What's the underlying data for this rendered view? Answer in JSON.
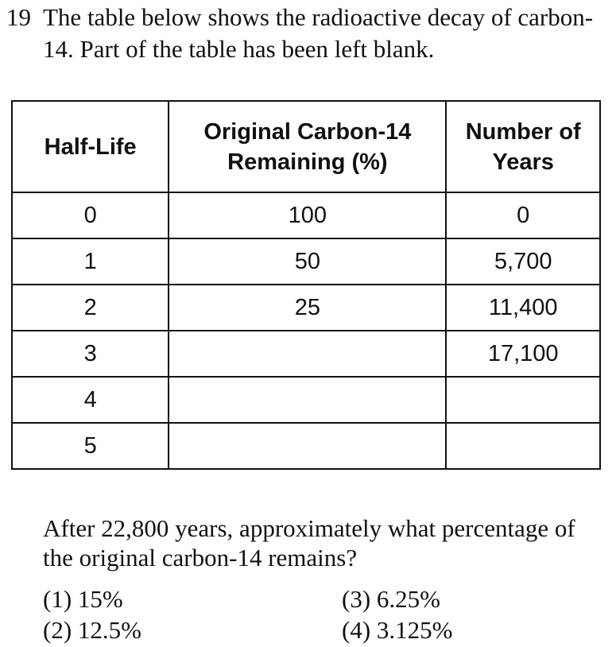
{
  "question": {
    "number": "19",
    "intro": "The table below shows the radioactive decay of carbon-14. Part of the table has been left blank."
  },
  "table": {
    "headers": {
      "half_life": "Half-Life",
      "remaining_line1": "Original Carbon-14",
      "remaining_line2": "Remaining (%)",
      "years_line1": "Number of",
      "years_line2": "Years"
    },
    "rows": [
      {
        "half_life": "0",
        "remaining": "100",
        "years": "0"
      },
      {
        "half_life": "1",
        "remaining": "50",
        "years": "5,700"
      },
      {
        "half_life": "2",
        "remaining": "25",
        "years": "11,400"
      },
      {
        "half_life": "3",
        "remaining": "",
        "years": "17,100"
      },
      {
        "half_life": "4",
        "remaining": "",
        "years": ""
      },
      {
        "half_life": "5",
        "remaining": "",
        "years": ""
      }
    ]
  },
  "prompt": "After 22,800 years, approximately what percentage of the original carbon-14 remains?",
  "choices": [
    {
      "label": "(1)",
      "text": "15%"
    },
    {
      "label": "(2)",
      "text": "12.5%"
    },
    {
      "label": "(3)",
      "text": "6.25%"
    },
    {
      "label": "(4)",
      "text": "3.125%"
    }
  ]
}
